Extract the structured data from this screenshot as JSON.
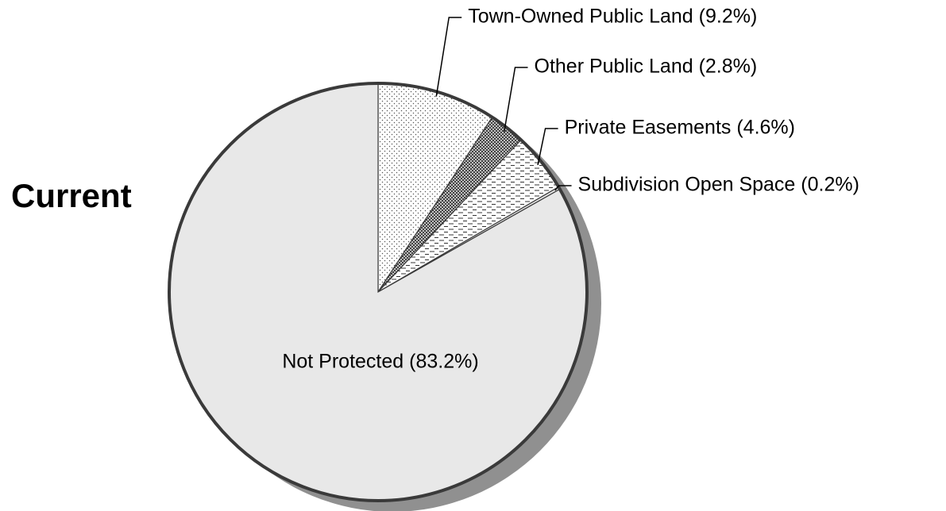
{
  "chart_data": {
    "type": "pie",
    "title": "Current",
    "slices": [
      {
        "label": "Town-Owned Public Land (9.2%)",
        "value": 9.2,
        "pattern": "sparse-dots"
      },
      {
        "label": "Other Public Land (2.8%)",
        "value": 2.8,
        "pattern": "dense-dots"
      },
      {
        "label": "Private Easements (4.6%)",
        "value": 4.6,
        "pattern": "dashes"
      },
      {
        "label": "Subdivision Open Space (0.2%)",
        "value": 0.2,
        "pattern": "solid-light"
      },
      {
        "label": "Not Protected (83.2%)",
        "value": 83.2,
        "pattern": "solid-light"
      }
    ],
    "colors": {
      "fill": "#e8e8e8",
      "shadow": "#909090",
      "outline": "#3a3a3a"
    }
  }
}
